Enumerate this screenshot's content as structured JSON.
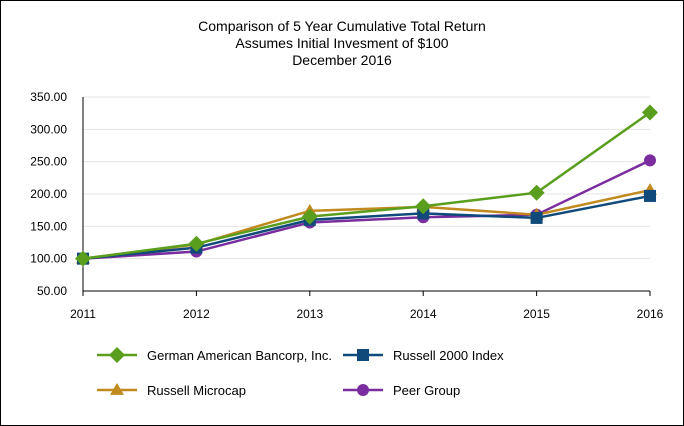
{
  "chart_data": {
    "type": "line",
    "title": [
      "Comparison of 5 Year Cumulative Total Return",
      "Assumes Initial Invesment of $100",
      "December 2016"
    ],
    "xlabel": "",
    "ylabel": "",
    "categories": [
      "2011",
      "2012",
      "2013",
      "2014",
      "2015",
      "2016"
    ],
    "ylim": [
      50,
      350
    ],
    "yticks": [
      "50.00",
      "100.00",
      "150.00",
      "200.00",
      "250.00",
      "300.00",
      "350.00"
    ],
    "grid": "horizontal",
    "legend_position": "bottom",
    "series": [
      {
        "name": "German American Bancorp, Inc.",
        "values": [
          100,
          123,
          165,
          181,
          202,
          326
        ],
        "color": "#5a9e1e",
        "marker": "diamond"
      },
      {
        "name": "Russell 2000 Index",
        "values": [
          100,
          117,
          160,
          170,
          163,
          197
        ],
        "color": "#0f4a7a",
        "marker": "square"
      },
      {
        "name": "Russell Microcap",
        "values": [
          100,
          122,
          174,
          180,
          168,
          206
        ],
        "color": "#c08a1e",
        "marker": "triangle"
      },
      {
        "name": "Peer Group",
        "values": [
          100,
          111,
          156,
          164,
          168,
          252
        ],
        "color": "#7a2d9e",
        "marker": "circle"
      }
    ]
  }
}
